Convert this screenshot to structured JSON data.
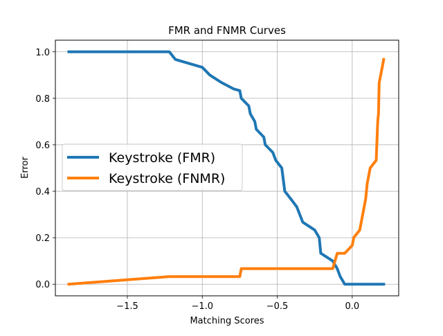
{
  "chart_data": {
    "type": "line",
    "title": "FMR and FNMR Curves",
    "xlabel": "Matching Scores",
    "ylabel": "Error",
    "xlim": [
      -1.98,
      0.31
    ],
    "ylim": [
      -0.05,
      1.05
    ],
    "xticks": [
      -1.5,
      -1.0,
      -0.5,
      0.0
    ],
    "xtick_labels": [
      "−1.5",
      "−1.0",
      "−0.5",
      "0.0"
    ],
    "yticks": [
      0.0,
      0.2,
      0.4,
      0.6,
      0.8,
      1.0
    ],
    "ytick_labels": [
      "0.0",
      "0.2",
      "0.4",
      "0.6",
      "0.8",
      "1.0"
    ],
    "grid": true,
    "legend_position": "center-left",
    "series": [
      {
        "name": "Keystroke (FMR)",
        "color": "#1f77b4",
        "x": [
          -1.89,
          -1.22,
          -1.18,
          -1.0,
          -0.95,
          -0.87,
          -0.79,
          -0.75,
          -0.74,
          -0.69,
          -0.68,
          -0.65,
          -0.64,
          -0.59,
          -0.58,
          -0.53,
          -0.51,
          -0.47,
          -0.45,
          -0.41,
          -0.37,
          -0.33,
          -0.25,
          -0.22,
          -0.21,
          -0.13,
          -0.1,
          -0.08,
          -0.05,
          0.21
        ],
        "y": [
          1.0,
          1.0,
          0.967,
          0.933,
          0.9,
          0.867,
          0.84,
          0.833,
          0.8,
          0.767,
          0.733,
          0.7,
          0.667,
          0.633,
          0.6,
          0.567,
          0.533,
          0.5,
          0.4,
          0.367,
          0.333,
          0.267,
          0.233,
          0.2,
          0.133,
          0.1,
          0.067,
          0.033,
          0.0,
          0.0
        ]
      },
      {
        "name": "Keystroke (FNMR)",
        "color": "#ff7f0e",
        "x": [
          -1.89,
          -1.22,
          -0.75,
          -0.74,
          -0.13,
          -0.1,
          -0.05,
          0.0,
          0.01,
          0.05,
          0.07,
          0.09,
          0.1,
          0.11,
          0.12,
          0.16,
          0.17,
          0.175,
          0.18,
          0.2,
          0.21
        ],
        "y": [
          0.0,
          0.033,
          0.033,
          0.067,
          0.067,
          0.133,
          0.133,
          0.167,
          0.2,
          0.233,
          0.3,
          0.367,
          0.433,
          0.467,
          0.5,
          0.533,
          0.7,
          0.733,
          0.867,
          0.933,
          0.967
        ]
      }
    ]
  }
}
